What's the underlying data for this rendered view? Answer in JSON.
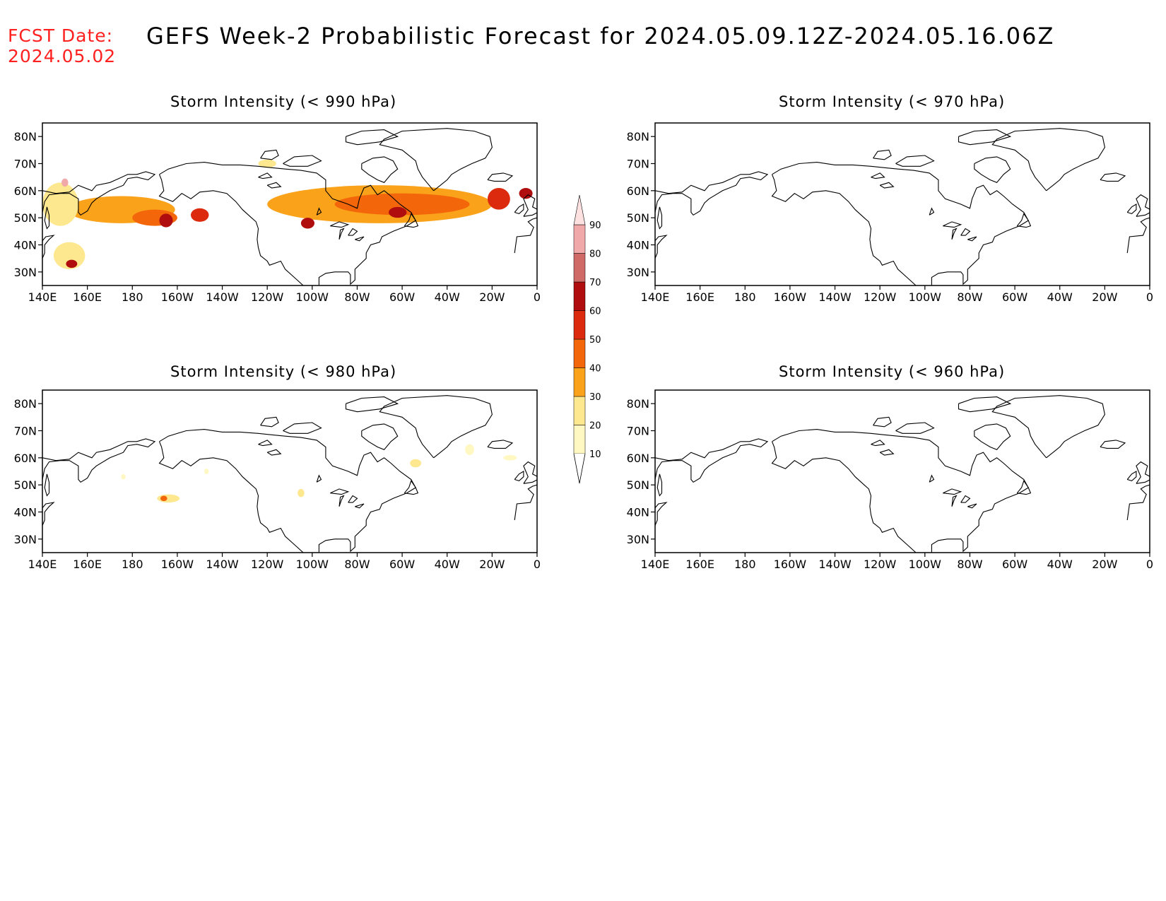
{
  "header": {
    "fcst_label": "FCST Date:",
    "fcst_date": "2024.05.02",
    "title": "GEFS Week-2 Probabilistic Forecast for 2024.05.09.12Z-2024.05.16.06Z"
  },
  "axes": {
    "lon_labels": [
      "140E",
      "160E",
      "180",
      "160W",
      "140W",
      "120W",
      "100W",
      "80W",
      "60W",
      "40W",
      "20W",
      "0"
    ],
    "lat_labels": [
      "80N",
      "70N",
      "60N",
      "50N",
      "40N",
      "30N"
    ]
  },
  "panels": [
    {
      "id": "p990",
      "title": "Storm Intensity (< 990 hPa)"
    },
    {
      "id": "p970",
      "title": "Storm Intensity (< 970 hPa)"
    },
    {
      "id": "p980",
      "title": "Storm Intensity (< 980 hPa)"
    },
    {
      "id": "p960",
      "title": "Storm Intensity (< 960 hPa)"
    }
  ],
  "colorbar": {
    "levels": [
      "10",
      "20",
      "30",
      "40",
      "50",
      "60",
      "70",
      "80",
      "90"
    ],
    "colors": [
      "#fff8c2",
      "#fde88f",
      "#f9a21a",
      "#f4660a",
      "#dc2a0e",
      "#b00e0e",
      "#d06a66",
      "#f1a8a8",
      "#fde0e0"
    ]
  },
  "chart_data": {
    "type": "heatmap",
    "x_range_deg_east": [
      140,
      360
    ],
    "y_range_deg_north": [
      25,
      85
    ],
    "panels": [
      {
        "title": "Storm Intensity (< 990 hPa)",
        "areas": [
          {
            "lon": 175,
            "lat": 53,
            "dlon": 48,
            "dlat": 10,
            "prob": 30
          },
          {
            "lon": 148,
            "lat": 55,
            "dlon": 16,
            "dlat": 16,
            "prob": 25
          },
          {
            "lon": 152,
            "lat": 36,
            "dlon": 14,
            "dlat": 10,
            "prob": 20
          },
          {
            "lon": 190,
            "lat": 50,
            "dlon": 20,
            "dlat": 6,
            "prob": 40
          },
          {
            "lon": 195,
            "lat": 49,
            "dlon": 6,
            "dlat": 5,
            "prob": 60
          },
          {
            "lon": 210,
            "lat": 51,
            "dlon": 8,
            "dlat": 5,
            "prob": 50
          },
          {
            "lon": 150,
            "lat": 63,
            "dlon": 3,
            "dlat": 3,
            "prob": 80
          },
          {
            "lon": 153,
            "lat": 33,
            "dlon": 5,
            "dlat": 3,
            "prob": 60
          },
          {
            "lon": 290,
            "lat": 55,
            "dlon": 100,
            "dlat": 14,
            "prob": 30
          },
          {
            "lon": 300,
            "lat": 55,
            "dlon": 60,
            "dlat": 8,
            "prob": 45
          },
          {
            "lon": 298,
            "lat": 52,
            "dlon": 8,
            "dlat": 4,
            "prob": 60
          },
          {
            "lon": 258,
            "lat": 48,
            "dlon": 6,
            "dlat": 4,
            "prob": 60
          },
          {
            "lon": 343,
            "lat": 57,
            "dlon": 10,
            "dlat": 8,
            "prob": 50
          },
          {
            "lon": 355,
            "lat": 59,
            "dlon": 6,
            "dlat": 4,
            "prob": 60
          },
          {
            "lon": 240,
            "lat": 70,
            "dlon": 8,
            "dlat": 3,
            "prob": 25
          }
        ]
      },
      {
        "title": "Storm Intensity (< 970 hPa)",
        "areas": []
      },
      {
        "title": "Storm Intensity (< 980 hPa)",
        "areas": [
          {
            "lon": 196,
            "lat": 45,
            "dlon": 10,
            "dlat": 3,
            "prob": 25
          },
          {
            "lon": 194,
            "lat": 45,
            "dlon": 3,
            "dlat": 2,
            "prob": 40
          },
          {
            "lon": 306,
            "lat": 58,
            "dlon": 5,
            "dlat": 3,
            "prob": 20
          },
          {
            "lon": 330,
            "lat": 63,
            "dlon": 4,
            "dlat": 4,
            "prob": 15
          },
          {
            "lon": 348,
            "lat": 60,
            "dlon": 6,
            "dlat": 2,
            "prob": 15
          },
          {
            "lon": 255,
            "lat": 47,
            "dlon": 3,
            "dlat": 3,
            "prob": 20
          },
          {
            "lon": 176,
            "lat": 53,
            "dlon": 2,
            "dlat": 2,
            "prob": 10
          },
          {
            "lon": 213,
            "lat": 55,
            "dlon": 2,
            "dlat": 2,
            "prob": 10
          }
        ]
      },
      {
        "title": "Storm Intensity (< 960 hPa)",
        "areas": []
      }
    ]
  }
}
